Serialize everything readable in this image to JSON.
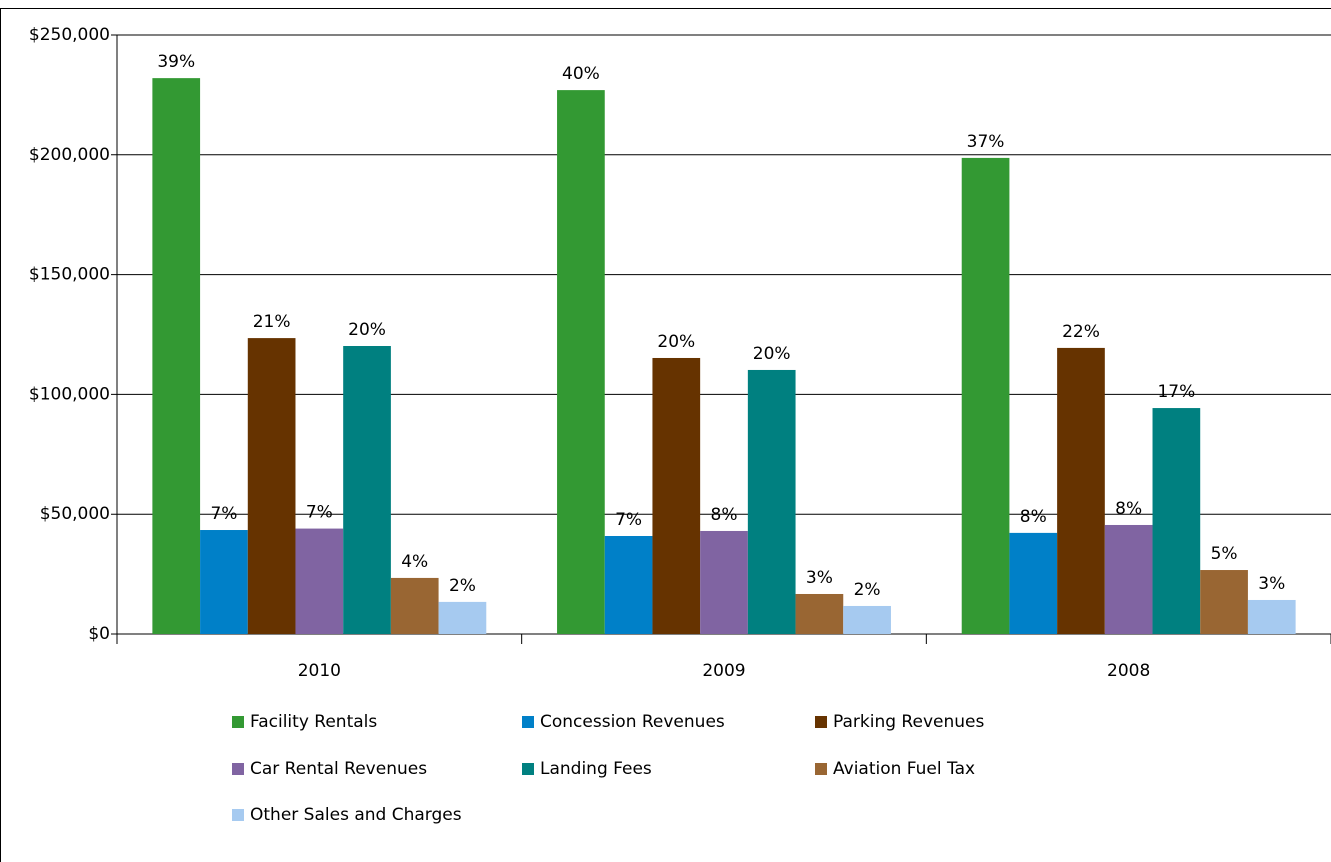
{
  "chart_data": {
    "type": "bar",
    "categories": [
      "2010",
      "2009",
      "2008"
    ],
    "series": [
      {
        "name": "Facility Rentals",
        "color": "#339933",
        "values": [
          232000,
          227000,
          198700
        ],
        "value_labels": [
          "39%",
          "40%",
          "37%"
        ]
      },
      {
        "name": "Concession Revenues",
        "color": "#0080c8",
        "values": [
          43400,
          40900,
          42200
        ],
        "value_labels": [
          "7%",
          "7%",
          "8%"
        ]
      },
      {
        "name": "Parking Revenues",
        "color": "#663300",
        "values": [
          123500,
          115200,
          119400
        ],
        "value_labels": [
          "21%",
          "20%",
          "22%"
        ]
      },
      {
        "name": "Car Rental Revenues",
        "color": "#8064a2",
        "values": [
          44000,
          43000,
          45500
        ],
        "value_labels": [
          "7%",
          "8%",
          "8%"
        ]
      },
      {
        "name": "Landing Fees",
        "color": "#008080",
        "values": [
          120200,
          110200,
          94300
        ],
        "value_labels": [
          "20%",
          "20%",
          "17%"
        ]
      },
      {
        "name": "Aviation Fuel Tax",
        "color": "#996633",
        "values": [
          23400,
          16700,
          26700
        ],
        "value_labels": [
          "4%",
          "3%",
          "5%"
        ]
      },
      {
        "name": "Other Sales and Charges",
        "color": "#a6caf0",
        "values": [
          13400,
          11700,
          14200
        ],
        "value_labels": [
          "2%",
          "2%",
          "3%"
        ]
      }
    ],
    "ylim": [
      0,
      250000
    ],
    "yticks": [
      {
        "value": 0,
        "label": "$0"
      },
      {
        "value": 50000,
        "label": "$50,000"
      },
      {
        "value": 100000,
        "label": "$100,000"
      },
      {
        "value": 150000,
        "label": "$150,000"
      },
      {
        "value": 200000,
        "label": "$200,000"
      },
      {
        "value": 250000,
        "label": "$250,000"
      }
    ],
    "grid": true,
    "legend": "bottom"
  }
}
